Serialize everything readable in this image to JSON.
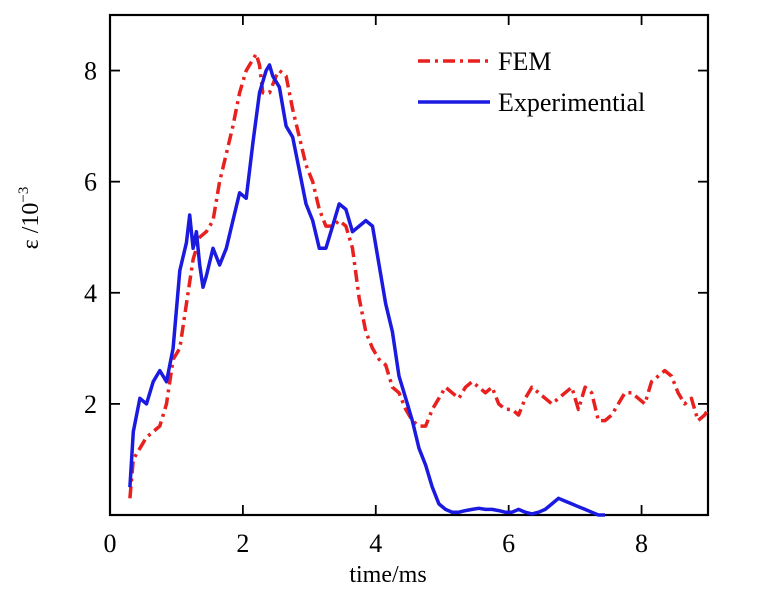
{
  "chart_data": {
    "type": "line",
    "title": "",
    "xlabel": "time/ms",
    "ylabel": "ε /10",
    "ylabel_exponent": "−3",
    "xlim": [
      0,
      9
    ],
    "ylim": [
      0,
      9
    ],
    "xticks": [
      0,
      2,
      4,
      6,
      8
    ],
    "xtick_labels": [
      "0",
      "2",
      "4",
      "6",
      "8"
    ],
    "yticks": [
      2,
      4,
      6,
      8
    ],
    "ytick_labels": [
      "2",
      "4",
      "6",
      "8"
    ],
    "grid": false,
    "legend_position": "top-right",
    "series": [
      {
        "name": "FEM",
        "color": "#e8201e",
        "style": "dash-dot",
        "x": [
          0.3,
          0.35,
          0.45,
          0.55,
          0.65,
          0.75,
          0.85,
          0.95,
          1.05,
          1.15,
          1.25,
          1.35,
          1.45,
          1.55,
          1.65,
          1.75,
          1.85,
          1.95,
          2.05,
          2.15,
          2.2,
          2.25,
          2.3,
          2.4,
          2.5,
          2.55,
          2.65,
          2.75,
          2.85,
          2.95,
          3.05,
          3.15,
          3.25,
          3.35,
          3.45,
          3.55,
          3.65,
          3.75,
          3.85,
          3.95,
          4.05,
          4.15,
          4.25,
          4.35,
          4.45,
          4.55,
          4.65,
          4.75,
          4.85,
          4.95,
          5.05,
          5.15,
          5.25,
          5.35,
          5.45,
          5.55,
          5.65,
          5.75,
          5.85,
          5.95,
          6.05,
          6.15,
          6.25,
          6.35,
          6.45,
          6.55,
          6.65,
          6.75,
          6.85,
          6.95,
          7.05,
          7.15,
          7.25,
          7.35,
          7.45,
          7.55,
          7.65,
          7.75,
          7.85,
          7.95,
          8.05,
          8.15,
          8.25,
          8.35,
          8.45,
          8.55,
          8.65,
          8.75,
          8.85,
          8.95,
          9.0
        ],
        "y": [
          0.3,
          1.0,
          1.2,
          1.4,
          1.5,
          1.6,
          2.0,
          2.8,
          3.0,
          3.8,
          4.6,
          5.0,
          5.1,
          5.3,
          6.0,
          6.5,
          7.0,
          7.6,
          8.0,
          8.2,
          8.3,
          8.1,
          7.6,
          7.6,
          7.9,
          8.0,
          7.9,
          7.3,
          6.8,
          6.3,
          6.0,
          5.5,
          5.2,
          5.2,
          5.3,
          5.2,
          4.8,
          3.9,
          3.3,
          3.0,
          2.8,
          2.7,
          2.3,
          2.2,
          1.9,
          1.7,
          1.6,
          1.6,
          1.9,
          2.1,
          2.3,
          2.2,
          2.1,
          2.3,
          2.4,
          2.3,
          2.2,
          2.3,
          2.0,
          1.9,
          1.9,
          1.8,
          2.1,
          2.3,
          2.2,
          2.1,
          2.0,
          2.1,
          2.2,
          2.3,
          1.9,
          2.3,
          2.2,
          1.7,
          1.7,
          1.8,
          2.0,
          2.2,
          2.2,
          2.1,
          2.0,
          2.4,
          2.5,
          2.6,
          2.5,
          2.2,
          2.0,
          2.1,
          1.7,
          1.8,
          1.9
        ]
      },
      {
        "name": "Experimential",
        "color": "#1a1ae0",
        "style": "solid",
        "x": [
          0.3,
          0.35,
          0.45,
          0.55,
          0.65,
          0.75,
          0.85,
          0.95,
          1.05,
          1.15,
          1.2,
          1.25,
          1.3,
          1.35,
          1.4,
          1.45,
          1.55,
          1.65,
          1.75,
          1.85,
          1.95,
          2.05,
          2.15,
          2.25,
          2.35,
          2.4,
          2.45,
          2.55,
          2.65,
          2.75,
          2.85,
          2.95,
          3.05,
          3.15,
          3.25,
          3.35,
          3.45,
          3.55,
          3.65,
          3.75,
          3.85,
          3.95,
          4.05,
          4.15,
          4.25,
          4.35,
          4.45,
          4.55,
          4.65,
          4.75,
          4.85,
          4.95,
          5.05,
          5.15,
          5.25,
          5.35,
          5.45,
          5.55,
          5.65,
          5.75,
          5.85,
          5.95,
          6.05,
          6.15,
          6.25,
          6.35,
          6.45,
          6.55,
          6.65,
          6.75,
          6.85,
          6.95,
          7.05,
          7.15,
          7.25,
          7.35,
          7.45
        ],
        "y": [
          0.5,
          1.5,
          2.1,
          2.0,
          2.4,
          2.6,
          2.4,
          3.0,
          4.4,
          4.9,
          5.4,
          4.8,
          5.1,
          4.5,
          4.1,
          4.3,
          4.8,
          4.5,
          4.8,
          5.3,
          5.8,
          5.7,
          6.7,
          7.6,
          8.0,
          8.1,
          7.9,
          7.7,
          7.0,
          6.8,
          6.2,
          5.6,
          5.3,
          4.8,
          4.8,
          5.2,
          5.6,
          5.5,
          5.1,
          5.2,
          5.3,
          5.2,
          4.5,
          3.8,
          3.3,
          2.5,
          2.1,
          1.7,
          1.2,
          0.9,
          0.5,
          0.2,
          0.1,
          0.05,
          0.05,
          0.08,
          0.1,
          0.12,
          0.1,
          0.1,
          0.08,
          0.05,
          0.05,
          0.1,
          0.05,
          0.02,
          0.05,
          0.1,
          0.2,
          0.3,
          0.25,
          0.2,
          0.15,
          0.1,
          0.05,
          0.0,
          0.0
        ]
      }
    ]
  }
}
